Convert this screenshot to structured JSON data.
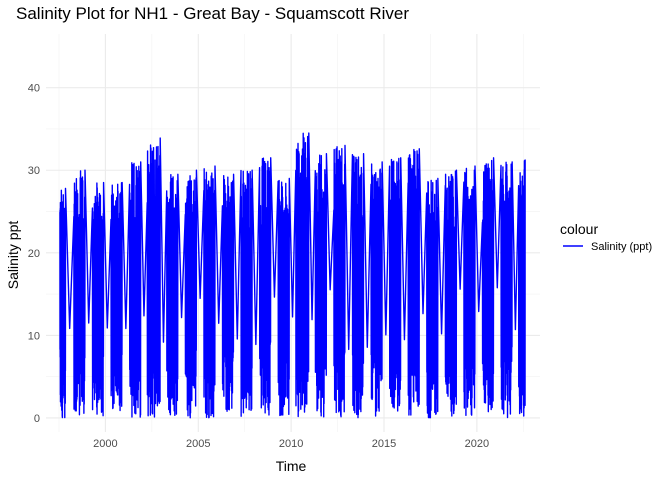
{
  "chart_data": {
    "type": "line",
    "title": "Salinity Plot for NH1 - Great Bay - Squamscott River",
    "xlabel": "Time",
    "ylabel": "Salinity ppt",
    "xlim": [
      1996.8,
      2023.4
    ],
    "ylim": [
      -1.7,
      46.5
    ],
    "x_ticks": [
      2000,
      2005,
      2010,
      2015,
      2020
    ],
    "x_tick_labels": [
      "2000",
      "2005",
      "2010",
      "2015",
      "2020"
    ],
    "y_ticks": [
      0,
      10,
      20,
      30,
      40
    ],
    "y_tick_labels": [
      "0",
      "10",
      "20",
      "30",
      "40"
    ],
    "grid": true,
    "legend": {
      "title": "colour",
      "position": "right"
    },
    "series": [
      {
        "name": "Salinity (ppt)",
        "color": "#0000ff",
        "seasons": [
          {
            "year": 1997,
            "start": 1997.55,
            "end": 1997.85,
            "peak": 27.8
          },
          {
            "year": 1998,
            "start": 1998.3,
            "end": 1998.9,
            "peak": 30.0
          },
          {
            "year": 1999,
            "start": 1999.3,
            "end": 1999.9,
            "peak": 28.5
          },
          {
            "year": 2000,
            "start": 2000.3,
            "end": 2000.9,
            "peak": 28.5
          },
          {
            "year": 2001,
            "start": 2001.3,
            "end": 2001.9,
            "peak": 31.0
          },
          {
            "year": 2002,
            "start": 2002.25,
            "end": 2002.95,
            "peak": 33.9
          },
          {
            "year": 2003,
            "start": 2003.3,
            "end": 2003.9,
            "peak": 29.5
          },
          {
            "year": 2004,
            "start": 2004.3,
            "end": 2004.9,
            "peak": 30.0
          },
          {
            "year": 2005,
            "start": 2005.3,
            "end": 2005.9,
            "peak": 30.5
          },
          {
            "year": 2006,
            "start": 2006.3,
            "end": 2006.9,
            "peak": 29.5
          },
          {
            "year": 2007,
            "start": 2007.3,
            "end": 2007.9,
            "peak": 30.0
          },
          {
            "year": 2008,
            "start": 2008.3,
            "end": 2008.9,
            "peak": 31.5
          },
          {
            "year": 2009,
            "start": 2009.3,
            "end": 2009.9,
            "peak": 29.0
          },
          {
            "year": 2010,
            "start": 2010.25,
            "end": 2010.95,
            "peak": 34.5
          },
          {
            "year": 2011,
            "start": 2011.3,
            "end": 2011.9,
            "peak": 32.0
          },
          {
            "year": 2012,
            "start": 2012.3,
            "end": 2012.9,
            "peak": 33.0
          },
          {
            "year": 2013,
            "start": 2013.3,
            "end": 2013.9,
            "peak": 32.0
          },
          {
            "year": 2014,
            "start": 2014.3,
            "end": 2014.9,
            "peak": 31.0
          },
          {
            "year": 2015,
            "start": 2015.3,
            "end": 2015.9,
            "peak": 31.5
          },
          {
            "year": 2016,
            "start": 2016.3,
            "end": 2016.9,
            "peak": 32.6
          },
          {
            "year": 2017,
            "start": 2017.3,
            "end": 2017.9,
            "peak": 29.0
          },
          {
            "year": 2018,
            "start": 2018.3,
            "end": 2018.9,
            "peak": 30.0
          },
          {
            "year": 2019,
            "start": 2019.3,
            "end": 2019.9,
            "peak": 30.5
          },
          {
            "year": 2020,
            "start": 2020.3,
            "end": 2020.9,
            "peak": 31.5
          },
          {
            "year": 2021,
            "start": 2021.3,
            "end": 2021.9,
            "peak": 31.0
          },
          {
            "year": 2022,
            "start": 2022.25,
            "end": 2022.6,
            "peak": 31.3
          }
        ],
        "min": 0,
        "max": 34.5
      }
    ]
  }
}
